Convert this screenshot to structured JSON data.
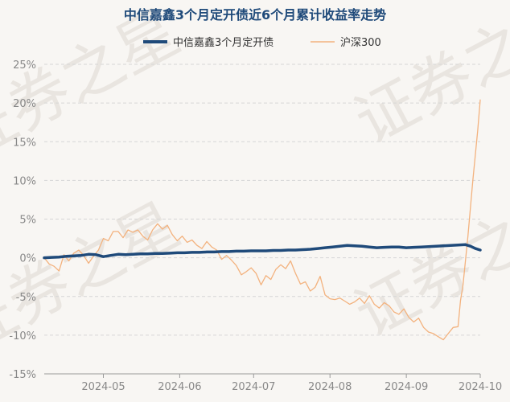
{
  "chart_data": {
    "type": "line",
    "title": "中信嘉鑫3个月定开债近6个月累计收益率走势",
    "watermark": "证券之星",
    "xlabel": "",
    "ylabel": "",
    "ylim": [
      -15,
      25
    ],
    "yticks": [
      25,
      20,
      15,
      10,
      5,
      0,
      -5,
      -10,
      -15
    ],
    "ytick_labels": [
      "25%",
      "20%",
      "15%",
      "10%",
      "5%",
      "0%",
      "-5%",
      "-10%",
      "-15%"
    ],
    "xlim": [
      "2024-04-07",
      "2024-10-01"
    ],
    "xticks": [
      "2024-05-01",
      "2024-06-01",
      "2024-07-01",
      "2024-08-01",
      "2024-09-01",
      "2024-10-01"
    ],
    "xtick_labels": [
      "2024-05",
      "2024-06",
      "2024-07",
      "2024-08",
      "2024-09",
      "2024-10"
    ],
    "grid": true,
    "legend_position": "top-center",
    "colors": {
      "fund": "#1f4a7a",
      "index": "#f3b27e",
      "grid": "#d6d6d6",
      "axis": "#9a9a9a"
    },
    "series": [
      {
        "name": "中信嘉鑫3个月定开债",
        "data": [
          [
            "2024-04-07",
            0.0
          ],
          [
            "2024-04-10",
            0.05
          ],
          [
            "2024-04-13",
            0.1
          ],
          [
            "2024-04-16",
            0.2
          ],
          [
            "2024-04-19",
            0.25
          ],
          [
            "2024-04-22",
            0.3
          ],
          [
            "2024-04-25",
            0.45
          ],
          [
            "2024-04-28",
            0.4
          ],
          [
            "2024-05-01",
            0.15
          ],
          [
            "2024-05-04",
            0.3
          ],
          [
            "2024-05-07",
            0.45
          ],
          [
            "2024-05-10",
            0.4
          ],
          [
            "2024-05-13",
            0.45
          ],
          [
            "2024-05-16",
            0.5
          ],
          [
            "2024-05-19",
            0.5
          ],
          [
            "2024-05-22",
            0.55
          ],
          [
            "2024-05-25",
            0.55
          ],
          [
            "2024-05-28",
            0.6
          ],
          [
            "2024-05-31",
            0.65
          ],
          [
            "2024-06-03",
            0.65
          ],
          [
            "2024-06-06",
            0.7
          ],
          [
            "2024-06-09",
            0.7
          ],
          [
            "2024-06-12",
            0.75
          ],
          [
            "2024-06-15",
            0.75
          ],
          [
            "2024-06-18",
            0.8
          ],
          [
            "2024-06-21",
            0.8
          ],
          [
            "2024-06-24",
            0.85
          ],
          [
            "2024-06-27",
            0.85
          ],
          [
            "2024-06-30",
            0.9
          ],
          [
            "2024-07-03",
            0.9
          ],
          [
            "2024-07-06",
            0.9
          ],
          [
            "2024-07-09",
            0.95
          ],
          [
            "2024-07-12",
            0.95
          ],
          [
            "2024-07-15",
            1.0
          ],
          [
            "2024-07-18",
            1.0
          ],
          [
            "2024-07-21",
            1.05
          ],
          [
            "2024-07-24",
            1.1
          ],
          [
            "2024-07-27",
            1.2
          ],
          [
            "2024-07-30",
            1.3
          ],
          [
            "2024-08-02",
            1.4
          ],
          [
            "2024-08-05",
            1.5
          ],
          [
            "2024-08-08",
            1.6
          ],
          [
            "2024-08-11",
            1.55
          ],
          [
            "2024-08-14",
            1.5
          ],
          [
            "2024-08-17",
            1.4
          ],
          [
            "2024-08-20",
            1.3
          ],
          [
            "2024-08-23",
            1.35
          ],
          [
            "2024-08-26",
            1.4
          ],
          [
            "2024-08-29",
            1.4
          ],
          [
            "2024-09-01",
            1.3
          ],
          [
            "2024-09-04",
            1.35
          ],
          [
            "2024-09-07",
            1.4
          ],
          [
            "2024-09-10",
            1.45
          ],
          [
            "2024-09-13",
            1.5
          ],
          [
            "2024-09-16",
            1.55
          ],
          [
            "2024-09-19",
            1.6
          ],
          [
            "2024-09-22",
            1.65
          ],
          [
            "2024-09-25",
            1.7
          ],
          [
            "2024-09-27",
            1.5
          ],
          [
            "2024-09-29",
            1.2
          ],
          [
            "2024-10-01",
            1.0
          ]
        ]
      },
      {
        "name": "沪深300",
        "data": [
          [
            "2024-04-07",
            0.0
          ],
          [
            "2024-04-09",
            -0.8
          ],
          [
            "2024-04-11",
            -1.1
          ],
          [
            "2024-04-13",
            -1.7
          ],
          [
            "2024-04-15",
            0.4
          ],
          [
            "2024-04-17",
            -0.4
          ],
          [
            "2024-04-19",
            0.6
          ],
          [
            "2024-04-21",
            1.0
          ],
          [
            "2024-04-23",
            0.3
          ],
          [
            "2024-04-25",
            -0.7
          ],
          [
            "2024-04-27",
            0.2
          ],
          [
            "2024-04-29",
            1.0
          ],
          [
            "2024-05-01",
            2.5
          ],
          [
            "2024-05-03",
            2.2
          ],
          [
            "2024-05-05",
            3.4
          ],
          [
            "2024-05-07",
            3.4
          ],
          [
            "2024-05-09",
            2.6
          ],
          [
            "2024-05-11",
            3.6
          ],
          [
            "2024-05-13",
            3.3
          ],
          [
            "2024-05-15",
            3.6
          ],
          [
            "2024-05-17",
            2.8
          ],
          [
            "2024-05-19",
            2.3
          ],
          [
            "2024-05-21",
            3.6
          ],
          [
            "2024-05-23",
            4.4
          ],
          [
            "2024-05-25",
            3.7
          ],
          [
            "2024-05-27",
            4.2
          ],
          [
            "2024-05-29",
            3.0
          ],
          [
            "2024-05-31",
            2.2
          ],
          [
            "2024-06-02",
            2.8
          ],
          [
            "2024-06-04",
            2.0
          ],
          [
            "2024-06-06",
            2.3
          ],
          [
            "2024-06-08",
            1.6
          ],
          [
            "2024-06-10",
            1.2
          ],
          [
            "2024-06-12",
            2.1
          ],
          [
            "2024-06-14",
            1.4
          ],
          [
            "2024-06-16",
            1.0
          ],
          [
            "2024-06-18",
            -0.2
          ],
          [
            "2024-06-20",
            0.3
          ],
          [
            "2024-06-22",
            -0.3
          ],
          [
            "2024-06-24",
            -1.0
          ],
          [
            "2024-06-26",
            -2.2
          ],
          [
            "2024-06-28",
            -1.8
          ],
          [
            "2024-06-30",
            -1.3
          ],
          [
            "2024-07-02",
            -2.0
          ],
          [
            "2024-07-04",
            -3.5
          ],
          [
            "2024-07-06",
            -2.3
          ],
          [
            "2024-07-08",
            -2.8
          ],
          [
            "2024-07-10",
            -1.5
          ],
          [
            "2024-07-12",
            -0.9
          ],
          [
            "2024-07-14",
            -1.4
          ],
          [
            "2024-07-16",
            -0.4
          ],
          [
            "2024-07-18",
            -2.0
          ],
          [
            "2024-07-20",
            -3.4
          ],
          [
            "2024-07-22",
            -3.1
          ],
          [
            "2024-07-24",
            -4.3
          ],
          [
            "2024-07-26",
            -3.8
          ],
          [
            "2024-07-28",
            -2.4
          ],
          [
            "2024-07-30",
            -4.8
          ],
          [
            "2024-08-01",
            -5.3
          ],
          [
            "2024-08-03",
            -5.4
          ],
          [
            "2024-08-05",
            -5.2
          ],
          [
            "2024-08-07",
            -5.6
          ],
          [
            "2024-08-09",
            -6.0
          ],
          [
            "2024-08-11",
            -5.7
          ],
          [
            "2024-08-13",
            -5.2
          ],
          [
            "2024-08-15",
            -5.9
          ],
          [
            "2024-08-17",
            -4.9
          ],
          [
            "2024-08-19",
            -6.0
          ],
          [
            "2024-08-21",
            -6.5
          ],
          [
            "2024-08-23",
            -5.8
          ],
          [
            "2024-08-25",
            -6.2
          ],
          [
            "2024-08-27",
            -7.0
          ],
          [
            "2024-08-29",
            -7.3
          ],
          [
            "2024-08-31",
            -6.6
          ],
          [
            "2024-09-02",
            -7.7
          ],
          [
            "2024-09-04",
            -8.3
          ],
          [
            "2024-09-06",
            -7.8
          ],
          [
            "2024-09-08",
            -9.0
          ],
          [
            "2024-09-10",
            -9.6
          ],
          [
            "2024-09-12",
            -9.8
          ],
          [
            "2024-09-14",
            -10.2
          ],
          [
            "2024-09-16",
            -10.6
          ],
          [
            "2024-09-18",
            -9.8
          ],
          [
            "2024-09-20",
            -9.0
          ],
          [
            "2024-09-22",
            -8.9
          ],
          [
            "2024-09-23",
            -5.5
          ],
          [
            "2024-09-24",
            -3.5
          ],
          [
            "2024-09-26",
            2.8
          ],
          [
            "2024-09-28",
            10.0
          ],
          [
            "2024-09-30",
            16.5
          ],
          [
            "2024-10-01",
            20.4
          ]
        ]
      }
    ]
  }
}
